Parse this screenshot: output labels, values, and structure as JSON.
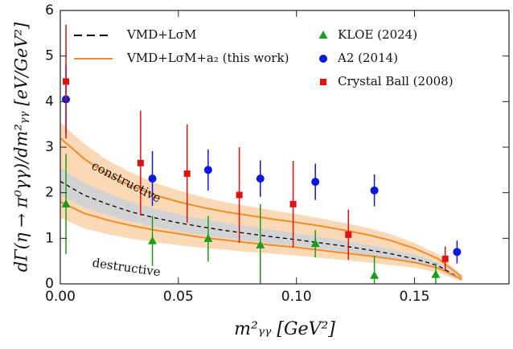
{
  "chart_data": {
    "type": "scatter",
    "x_label": "m²ᵧᵧ [GeV²]",
    "y_label": "dΓ(η → π⁰γγ)/dm²ᵧᵧ  [eV/GeV²]",
    "xlim": [
      0,
      0.19
    ],
    "ylim": [
      0,
      6
    ],
    "xticks": [
      {
        "value": 0,
        "label": "0.00"
      },
      {
        "value": 0.05,
        "label": "0.05"
      },
      {
        "value": 0.1,
        "label": "0.10"
      },
      {
        "value": 0.15,
        "label": "0.15"
      }
    ],
    "yticks": [
      0,
      1,
      2,
      3,
      4,
      5,
      6
    ],
    "curve_x": [
      0,
      0.01,
      0.02,
      0.03,
      0.04,
      0.05,
      0.06,
      0.07,
      0.08,
      0.09,
      0.1,
      0.11,
      0.12,
      0.13,
      0.14,
      0.15,
      0.16,
      0.17
    ],
    "bands": [
      {
        "color": "#fcd9b6",
        "upper": [
          3.55,
          3.08,
          2.71,
          2.44,
          2.22,
          2.05,
          1.91,
          1.79,
          1.7,
          1.61,
          1.53,
          1.44,
          1.34,
          1.23,
          1.09,
          0.9,
          0.65,
          0.2
        ],
        "lower": [
          1.45,
          1.22,
          1.09,
          0.99,
          0.91,
          0.85,
          0.79,
          0.75,
          0.7,
          0.66,
          0.62,
          0.57,
          0.52,
          0.47,
          0.41,
          0.35,
          0.25,
          0.05
        ]
      },
      {
        "color": "#d3d3d3",
        "upper": [
          2.55,
          2.22,
          1.99,
          1.8,
          1.65,
          1.53,
          1.43,
          1.34,
          1.26,
          1.18,
          1.11,
          1.03,
          0.95,
          0.86,
          0.76,
          0.64,
          0.47,
          0.13
        ],
        "lower": [
          1.95,
          1.68,
          1.51,
          1.36,
          1.25,
          1.15,
          1.07,
          1.0,
          0.94,
          0.88,
          0.83,
          0.77,
          0.71,
          0.64,
          0.56,
          0.46,
          0.33,
          0.07
        ]
      }
    ],
    "curves": [
      {
        "name": "VMD+LσM",
        "color": "#000000",
        "dash": true,
        "values": [
          2.25,
          1.95,
          1.75,
          1.58,
          1.45,
          1.34,
          1.25,
          1.17,
          1.1,
          1.03,
          0.97,
          0.9,
          0.83,
          0.75,
          0.66,
          0.55,
          0.4,
          0.1
        ]
      },
      {
        "name": "VMD+LσM+a₂ (this work)",
        "color": "#f28c28",
        "dash": false,
        "values": [
          3.2,
          2.75,
          2.4,
          2.15,
          1.95,
          1.8,
          1.68,
          1.58,
          1.5,
          1.42,
          1.35,
          1.27,
          1.18,
          1.08,
          0.95,
          0.78,
          0.55,
          0.15
        ],
        "values_lower": [
          1.8,
          1.55,
          1.4,
          1.28,
          1.18,
          1.1,
          1.02,
          0.96,
          0.9,
          0.85,
          0.8,
          0.74,
          0.68,
          0.62,
          0.55,
          0.47,
          0.35,
          0.1
        ]
      }
    ],
    "series": [
      {
        "name": "KLOE (2024)",
        "color": "#1a9e1a",
        "marker": "triangle",
        "x": [
          0.0024,
          0.039,
          0.0626,
          0.0847,
          0.108,
          0.133,
          0.159
        ],
        "values": [
          1.75,
          0.94,
          0.99,
          0.85,
          0.88,
          0.18,
          0.2
        ],
        "errors": [
          1.1,
          0.55,
          0.5,
          0.9,
          0.3,
          0.44,
          0.25
        ]
      },
      {
        "name": "A2 (2014)",
        "color": "#0b18e0",
        "marker": "circle",
        "x": [
          0.0024,
          0.039,
          0.0626,
          0.0847,
          0.108,
          0.133,
          0.168
        ],
        "values": [
          4.05,
          2.31,
          2.5,
          2.31,
          2.24,
          2.05,
          0.7
        ],
        "errors": [
          0.75,
          0.6,
          0.45,
          0.4,
          0.4,
          0.35,
          0.25
        ]
      },
      {
        "name": "Crystal Ball (2008)",
        "color": "#e01010",
        "marker": "square",
        "x": [
          0.0024,
          0.034,
          0.0537,
          0.0758,
          0.0986,
          0.122,
          0.163
        ],
        "values": [
          4.44,
          2.65,
          2.42,
          1.95,
          1.75,
          1.08,
          0.55
        ],
        "errors": [
          1.25,
          1.15,
          1.08,
          1.05,
          0.95,
          0.55,
          0.27
        ]
      }
    ],
    "annotations": [
      {
        "text": "constructive",
        "x": 0.0135,
        "y": 2.6,
        "angle": 27
      },
      {
        "text": "destructive",
        "x": 0.0135,
        "y": 0.45,
        "angle": 8
      }
    ]
  }
}
